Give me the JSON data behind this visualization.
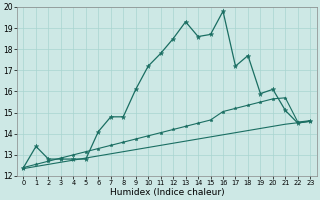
{
  "xlabel": "Humidex (Indice chaleur)",
  "xlim": [
    -0.5,
    23.5
  ],
  "ylim": [
    12,
    20
  ],
  "yticks": [
    12,
    13,
    14,
    15,
    16,
    17,
    18,
    19,
    20
  ],
  "xticks": [
    0,
    1,
    2,
    3,
    4,
    5,
    6,
    7,
    8,
    9,
    10,
    11,
    12,
    13,
    14,
    15,
    16,
    17,
    18,
    19,
    20,
    21,
    22,
    23
  ],
  "background_color": "#cde8e5",
  "grid_color": "#a8d5d0",
  "line_color": "#1a6e62",
  "line1_x": [
    0,
    1,
    2,
    3,
    4,
    5,
    6,
    7,
    8,
    9,
    10,
    11,
    12,
    13,
    14,
    15,
    16,
    17,
    18,
    19,
    20,
    21,
    22,
    23
  ],
  "line1_y": [
    12.4,
    13.4,
    12.8,
    12.8,
    12.8,
    12.8,
    14.1,
    14.8,
    14.8,
    16.1,
    17.2,
    17.8,
    18.5,
    19.3,
    18.6,
    18.7,
    19.8,
    17.2,
    17.7,
    15.9,
    16.1,
    15.1,
    14.5,
    14.6
  ],
  "line2_x": [
    0,
    1,
    2,
    3,
    4,
    5,
    6,
    7,
    8,
    9,
    10,
    11,
    12,
    13,
    14,
    15,
    16,
    17,
    18,
    19,
    20,
    21,
    22,
    23
  ],
  "line2_y": [
    12.4,
    12.55,
    12.7,
    12.85,
    13.0,
    13.15,
    13.3,
    13.45,
    13.6,
    13.75,
    13.9,
    14.05,
    14.2,
    14.35,
    14.5,
    14.65,
    15.05,
    15.2,
    15.35,
    15.5,
    15.65,
    15.7,
    14.55,
    14.62
  ],
  "line3_x": [
    0,
    1,
    2,
    3,
    4,
    5,
    6,
    7,
    8,
    9,
    10,
    11,
    12,
    13,
    14,
    15,
    16,
    17,
    18,
    19,
    20,
    21,
    22,
    23
  ],
  "line3_y": [
    12.35,
    12.45,
    12.55,
    12.65,
    12.75,
    12.85,
    12.95,
    13.05,
    13.15,
    13.25,
    13.35,
    13.45,
    13.55,
    13.65,
    13.75,
    13.85,
    13.95,
    14.05,
    14.15,
    14.25,
    14.35,
    14.45,
    14.52,
    14.58
  ]
}
